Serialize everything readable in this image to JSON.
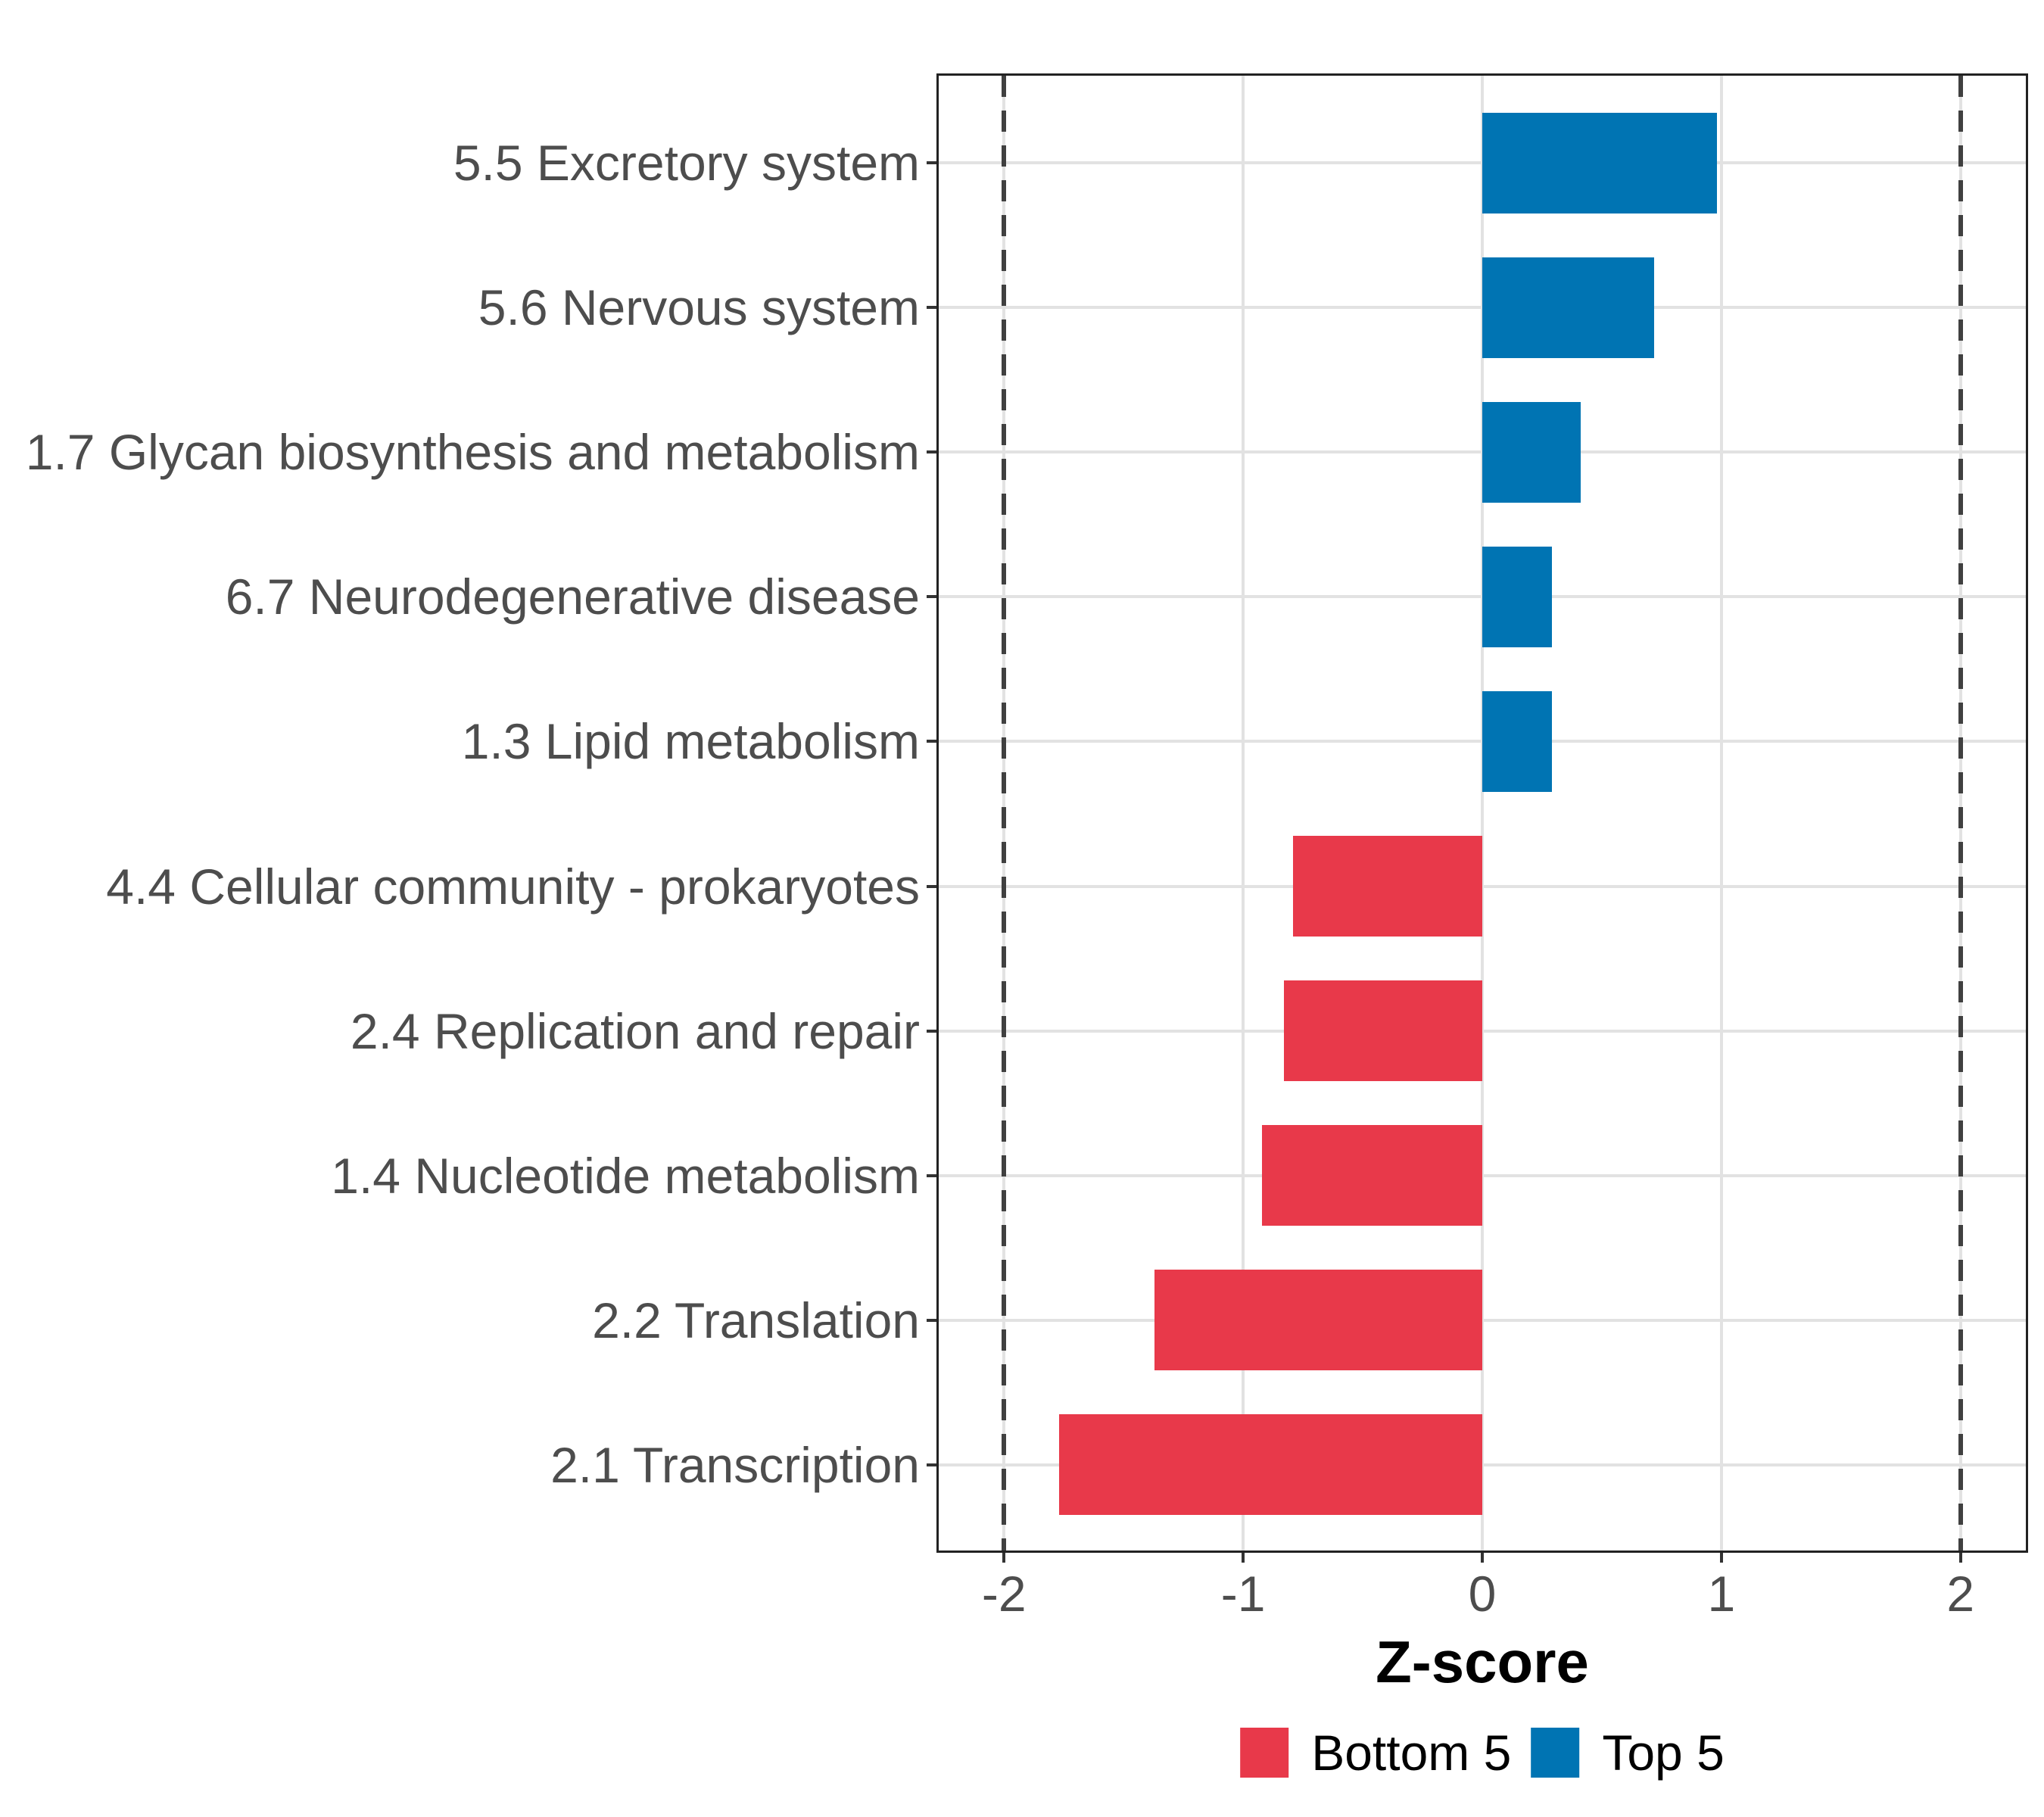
{
  "chart_data": {
    "type": "bar",
    "orientation": "horizontal",
    "title": "",
    "xlabel": "Z-score",
    "ylabel": "",
    "categories": [
      "5.5 Excretory system",
      "5.6 Nervous system",
      "1.7 Glycan biosynthesis and metabolism",
      "6.7 Neurodegenerative disease",
      "1.3 Lipid metabolism",
      "4.4 Cellular community - prokaryotes",
      "2.4 Replication and repair",
      "1.4 Nucleotide metabolism",
      "2.2 Translation",
      "2.1 Transcription"
    ],
    "values": [
      0.98,
      0.72,
      0.41,
      0.29,
      0.29,
      -0.79,
      -0.83,
      -0.92,
      -1.37,
      -1.77
    ],
    "groups": [
      "Top 5",
      "Top 5",
      "Top 5",
      "Top 5",
      "Top 5",
      "Bottom 5",
      "Bottom 5",
      "Bottom 5",
      "Bottom 5",
      "Bottom 5"
    ],
    "xlim": [
      -2.273,
      2.273
    ],
    "x_ticks": [
      -2,
      -1,
      0,
      1,
      2
    ],
    "x_tick_labels": [
      "-2",
      "-1",
      "0",
      "1",
      "2"
    ],
    "reference_lines": [
      -2,
      2
    ],
    "reference_line_style": "dashed",
    "grid": "major-only",
    "legend_position": "bottom",
    "legend": [
      {
        "label": "Bottom 5",
        "color": "#E8394A"
      },
      {
        "label": "Top 5",
        "color": "#0074B3"
      }
    ],
    "series_colors": {
      "Bottom 5": "#E8394A",
      "Top 5": "#0074B3"
    }
  },
  "colors": {
    "background": "#FFFFFF",
    "panel_border": "#222222",
    "gridline": "#E2E2E2",
    "reference_line": "#404040",
    "axis_text": "#4D4D4D",
    "tick_mark": "#333333",
    "axis_title": "#000000",
    "bar_red": "#E8394A",
    "bar_blue": "#0074B3"
  }
}
